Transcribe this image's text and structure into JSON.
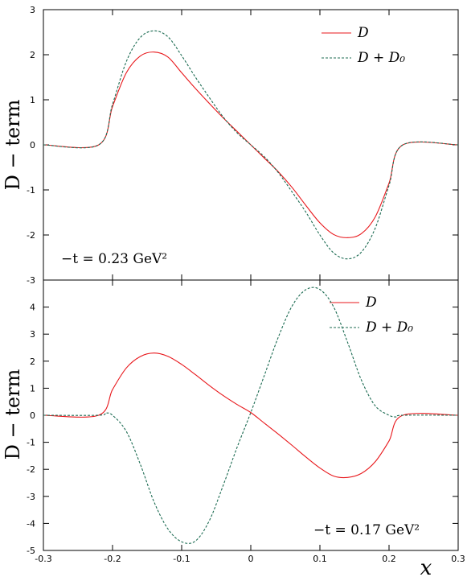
{
  "chart_data": [
    {
      "type": "line",
      "ylabel": "D − term",
      "xlim": [
        -0.3,
        0.3
      ],
      "ylim": [
        -3,
        3
      ],
      "xticks": [
        "-0.3",
        "-0.2",
        "-0.1",
        "0",
        "0.1",
        "0.2",
        "0.3"
      ],
      "yticks": [
        "-3",
        "-2",
        "-1",
        "0",
        "1",
        "2",
        "3"
      ],
      "legend": "top-right",
      "annotation": "−t = 0.23   GeV²",
      "series": [
        {
          "name": "D",
          "color": "#e8171b",
          "style": "solid",
          "x": [
            -0.3,
            -0.22,
            -0.2,
            -0.18,
            -0.16,
            -0.14,
            -0.12,
            -0.1,
            -0.08,
            -0.06,
            -0.04,
            -0.02,
            0.0,
            0.02,
            0.04,
            0.06,
            0.08,
            0.1,
            0.12,
            0.14,
            0.16,
            0.18,
            0.2,
            0.22,
            0.3
          ],
          "y": [
            0,
            0,
            0.85,
            1.6,
            1.97,
            2.06,
            1.95,
            1.6,
            1.25,
            0.92,
            0.6,
            0.3,
            0.0,
            -0.3,
            -0.6,
            -0.95,
            -1.35,
            -1.73,
            -1.99,
            -2.06,
            -1.97,
            -1.6,
            -0.85,
            0,
            0
          ]
        },
        {
          "name": "D + D₀",
          "color": "#1c6b52",
          "style": "dashed",
          "x": [
            -0.3,
            -0.22,
            -0.2,
            -0.18,
            -0.16,
            -0.14,
            -0.12,
            -0.1,
            -0.08,
            -0.06,
            -0.04,
            -0.02,
            0.0,
            0.02,
            0.04,
            0.06,
            0.08,
            0.1,
            0.12,
            0.14,
            0.16,
            0.18,
            0.2,
            0.22,
            0.3
          ],
          "y": [
            0,
            0,
            0.9,
            1.85,
            2.38,
            2.53,
            2.4,
            1.98,
            1.5,
            1.05,
            0.62,
            0.27,
            0.0,
            -0.27,
            -0.62,
            -1.05,
            -1.5,
            -2.0,
            -2.4,
            -2.53,
            -2.38,
            -1.85,
            -0.9,
            0,
            0
          ]
        }
      ]
    },
    {
      "type": "line",
      "xlabel": "x",
      "ylabel": "D − term",
      "xlim": [
        -0.3,
        0.3
      ],
      "ylim": [
        -5,
        5
      ],
      "xticks": [
        "-0.3",
        "-0.2",
        "-0.1",
        "0",
        "0.1",
        "0.2",
        "0.3"
      ],
      "yticks": [
        "-5",
        "-4",
        "-3",
        "-2",
        "-1",
        "0",
        "1",
        "2",
        "3",
        "4"
      ],
      "legend": "top-right",
      "annotation": "−t = 0.17   GeV²",
      "series": [
        {
          "name": "D",
          "color": "#e8171b",
          "style": "solid",
          "x": [
            -0.3,
            -0.22,
            -0.2,
            -0.18,
            -0.16,
            -0.14,
            -0.12,
            -0.1,
            -0.08,
            -0.06,
            -0.04,
            -0.02,
            0.0,
            0.02,
            0.04,
            0.06,
            0.08,
            0.1,
            0.12,
            0.14,
            0.16,
            0.18,
            0.2,
            0.22,
            0.3
          ],
          "y": [
            0,
            0,
            0.95,
            1.75,
            2.17,
            2.3,
            2.18,
            1.88,
            1.5,
            1.1,
            0.73,
            0.4,
            0.1,
            -0.3,
            -0.7,
            -1.12,
            -1.55,
            -1.95,
            -2.25,
            -2.3,
            -2.15,
            -1.72,
            -0.95,
            0,
            0
          ]
        },
        {
          "name": "D + D₀",
          "color": "#1c6b52",
          "style": "dashed",
          "x": [
            -0.3,
            -0.22,
            -0.21,
            -0.2,
            -0.18,
            -0.16,
            -0.14,
            -0.12,
            -0.1,
            -0.08,
            -0.06,
            -0.04,
            -0.02,
            0.0,
            0.02,
            0.04,
            0.06,
            0.08,
            0.1,
            0.12,
            0.14,
            0.16,
            0.18,
            0.2,
            0.21,
            0.22,
            0.3
          ],
          "y": [
            0,
            0,
            0.08,
            0.0,
            -0.6,
            -1.8,
            -3.2,
            -4.2,
            -4.68,
            -4.65,
            -3.9,
            -2.6,
            -1.2,
            0.1,
            1.5,
            2.9,
            4.05,
            4.65,
            4.65,
            4.0,
            2.7,
            1.3,
            0.35,
            0.0,
            -0.06,
            0,
            0
          ]
        }
      ]
    }
  ]
}
